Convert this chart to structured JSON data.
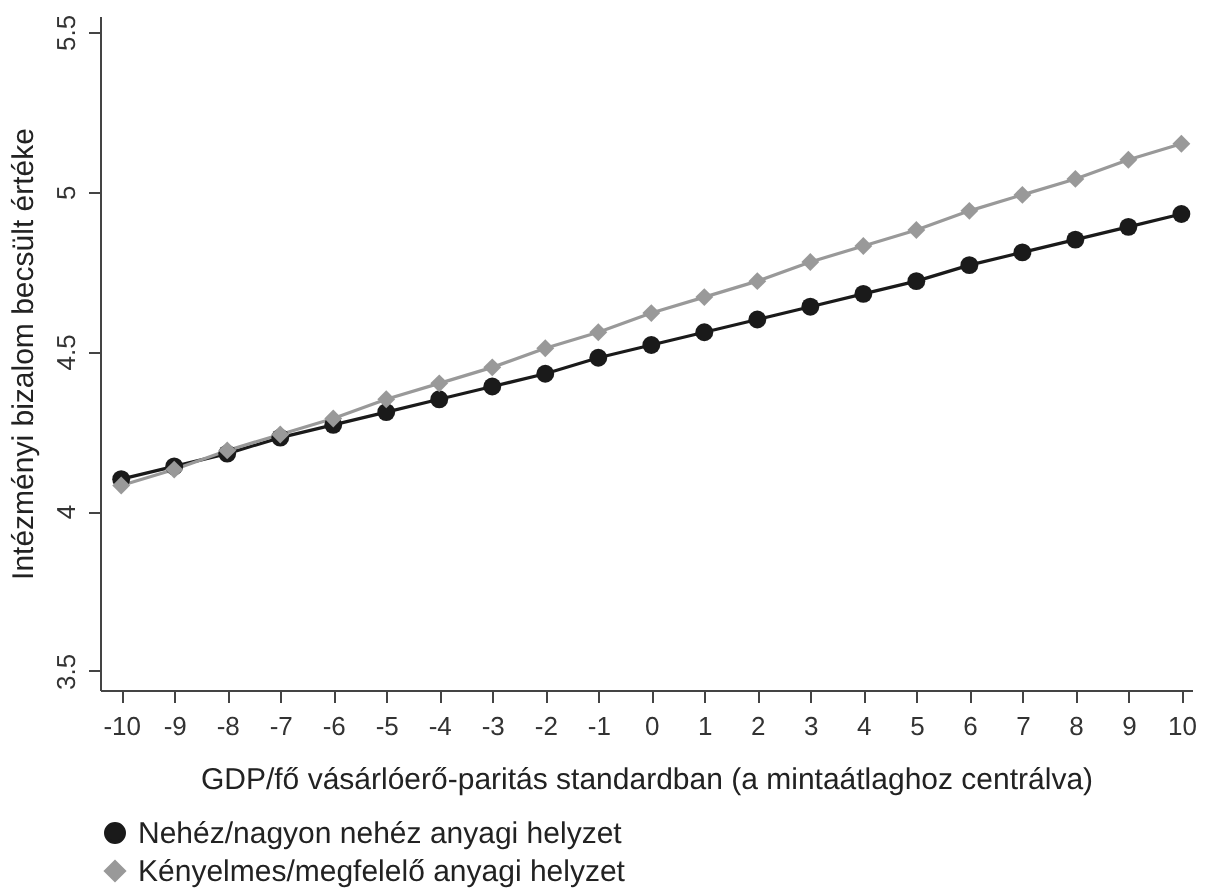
{
  "chart_data": {
    "type": "line",
    "xlabel": "GDP/fő vásárlóerő-paritás standardban (a mintaátlaghoz centrálva)",
    "ylabel": "Intézményi bizalom becsült értéke",
    "x": [
      -10,
      -9,
      -8,
      -7,
      -6,
      -5,
      -4,
      -3,
      -2,
      -1,
      0,
      1,
      2,
      3,
      4,
      5,
      6,
      7,
      8,
      9,
      10
    ],
    "series": [
      {
        "name": "Nehéz/nagyon nehéz anyagi helyzet",
        "color": "#1a1a1a",
        "marker": "circle",
        "values": [
          4.1,
          4.14,
          4.18,
          4.23,
          4.27,
          4.31,
          4.35,
          4.39,
          4.43,
          4.48,
          4.52,
          4.56,
          4.6,
          4.64,
          4.68,
          4.72,
          4.77,
          4.81,
          4.85,
          4.89,
          4.93
        ]
      },
      {
        "name": "Kényelmes/megfelelő anyagi helyzet",
        "color": "#999999",
        "marker": "diamond",
        "values": [
          4.08,
          4.13,
          4.19,
          4.24,
          4.29,
          4.35,
          4.4,
          4.45,
          4.51,
          4.56,
          4.62,
          4.67,
          4.72,
          4.78,
          4.83,
          4.88,
          4.94,
          4.99,
          5.04,
          5.1,
          5.15
        ]
      }
    ],
    "xlim": [
      -10.4,
      10.2
    ],
    "xticks": [
      -10,
      -9,
      -8,
      -7,
      -6,
      -5,
      -4,
      -3,
      -2,
      -1,
      0,
      1,
      2,
      3,
      4,
      5,
      6,
      7,
      8,
      9,
      10
    ],
    "ylim": [
      3.44,
      5.55
    ],
    "yticks": [
      3.5,
      4,
      4.5,
      5,
      5.5
    ],
    "grid": false,
    "legend": "bottom",
    "line_style": "solid"
  }
}
